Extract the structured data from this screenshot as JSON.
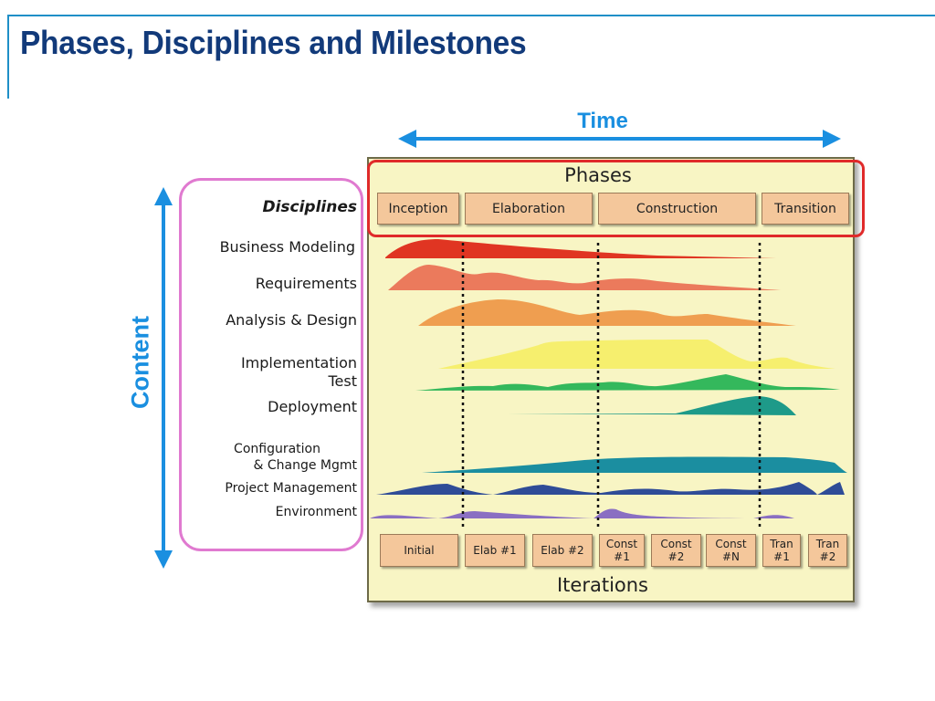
{
  "slide": {
    "title": "Phases, Disciplines and Milestones",
    "time_label": "Time",
    "content_label": "Content"
  },
  "diagram": {
    "phases_title": "Phases",
    "phases": [
      "Inception",
      "Elaboration",
      "Construction",
      "Transition"
    ],
    "disciplines_header": "Disciplines",
    "disciplines": [
      "Business Modeling",
      "Requirements",
      "Analysis & Design",
      "Implementation",
      "Test",
      "Deployment",
      "Configuration",
      "& Change Mgmt",
      "Project Management",
      "Environment"
    ],
    "iterations_title": "Iterations",
    "iterations": [
      "Initial",
      "Elab #1",
      "Elab #2",
      "Const\n#1",
      "Const\n#2",
      "Const\n#N",
      "Tran\n#1",
      "Tran\n#2"
    ],
    "colors": {
      "arrow": "#1a8fe0",
      "title": "#123a7a",
      "phase_highlight": "#e02a2a",
      "discipline_highlight": "#e07ad0",
      "panel_background": "#f8f5c4",
      "box_fill": "#f4c79b"
    }
  }
}
